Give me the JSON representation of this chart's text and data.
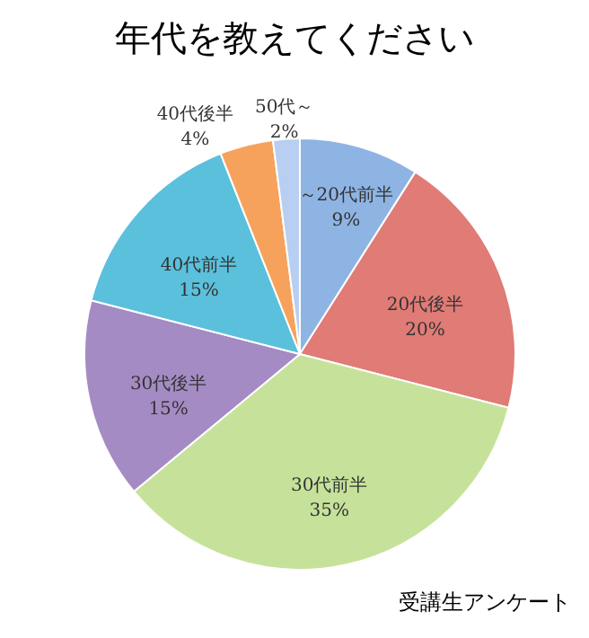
{
  "chart_data": {
    "type": "pie",
    "title": "年代を教えてください",
    "categories": [
      "～20代前半",
      "20代後半",
      "30代前半",
      "30代後半",
      "40代前半",
      "40代後半",
      "50代～"
    ],
    "values": [
      9,
      20,
      35,
      15,
      15,
      4,
      2
    ],
    "value_labels": [
      "9%",
      "20%",
      "35%",
      "15%",
      "15%",
      "4%",
      "2%"
    ],
    "colors": [
      "#8eb4e3",
      "#e07b76",
      "#c6e29a",
      "#a58bc4",
      "#5bc0dc",
      "#f7a25c",
      "#b8cff2"
    ],
    "legend": false,
    "annotations": [
      "受講生アンケート"
    ]
  }
}
